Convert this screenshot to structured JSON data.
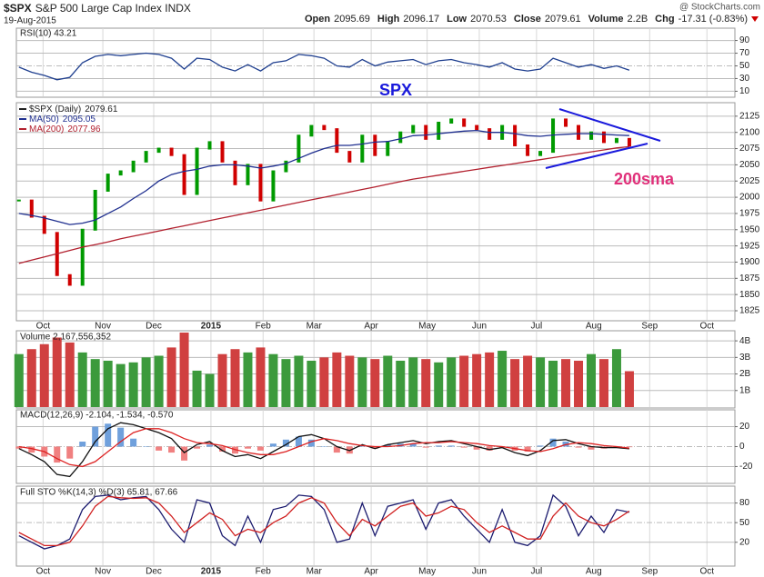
{
  "header": {
    "symbol": "$SPX",
    "name": "S&P 500 Large Cap Index INDX",
    "date": "19-Aug-2015",
    "logo": "@ StockCharts.com",
    "quote": [
      {
        "label": "Open",
        "value": 2095.69
      },
      {
        "label": "High",
        "value": 2096.17
      },
      {
        "label": "Low",
        "value": 2070.53
      },
      {
        "label": "Close",
        "value": 2079.61
      },
      {
        "label": "Volume",
        "value": "2.2B"
      },
      {
        "label": "Chg",
        "value": "-17.31 (-0.83%)"
      }
    ]
  },
  "chart_data": [
    {
      "type": "line",
      "label": "RSI(10) 43.21",
      "xlim": [
        -0.2,
        56.3
      ],
      "ylim": [
        2,
        108
      ],
      "yticks": [
        10,
        30,
        50,
        70,
        90
      ],
      "grid": true,
      "series": [
        {
          "name": "RSI(10)",
          "color": "#1f3f8f",
          "style": "line",
          "values": [
            48,
            40,
            35,
            28,
            32,
            55,
            65,
            68,
            66,
            68,
            70,
            68,
            62,
            45,
            62,
            60,
            48,
            42,
            52,
            42,
            55,
            58,
            68,
            66,
            62,
            50,
            48,
            60,
            50,
            56,
            58,
            60,
            52,
            58,
            60,
            55,
            52,
            48,
            55,
            45,
            42,
            45,
            62,
            55,
            48,
            52,
            46,
            50,
            43.21
          ]
        }
      ]
    },
    {
      "type": "line",
      "xlim": [
        -0.2,
        56.3
      ],
      "ylim": [
        1811,
        2143
      ],
      "grid": true,
      "annotations": [
        "SPX",
        "200sma"
      ],
      "yticks": [
        1825,
        1850,
        1875,
        1900,
        1925,
        1950,
        1975,
        2000,
        2025,
        2050,
        2075,
        2100,
        2125
      ],
      "xticks": [
        {
          "value": 1.9,
          "label": "Oct"
        },
        {
          "value": 6.6,
          "label": "Nov"
        },
        {
          "value": 10.6,
          "label": "Dec"
        },
        {
          "value": 15.1,
          "label": "2015"
        },
        {
          "value": 19.2,
          "label": "Feb"
        },
        {
          "value": 23.2,
          "label": "Mar"
        },
        {
          "value": 27.7,
          "label": "Apr"
        },
        {
          "value": 32.1,
          "label": "May"
        },
        {
          "value": 36.2,
          "label": "Jun"
        },
        {
          "value": 40.7,
          "label": "Jul"
        },
        {
          "value": 45.2,
          "label": "Aug"
        },
        {
          "value": 49.6,
          "label": "Sep"
        },
        {
          "value": 54.1,
          "label": "Oct"
        }
      ],
      "series": [
        {
          "name": "$SPX (Daily)",
          "style": "candle",
          "color": "#222222",
          "up_color": "#009a00",
          "down_color": "#d00000",
          "values": [
            1995,
            1970,
            1945,
            1880,
            1865,
            1950,
            2010,
            2035,
            2040,
            2055,
            2070,
            2075,
            2065,
            2005,
            2075,
            2085,
            2055,
            2020,
            2050,
            1995,
            2040,
            2055,
            2095,
            2110,
            2105,
            2070,
            2055,
            2095,
            2065,
            2085,
            2100,
            2110,
            2090,
            2115,
            2120,
            2110,
            2105,
            2090,
            2110,
            2080,
            2065,
            2070,
            2120,
            2110,
            2090,
            2100,
            2085,
            2090,
            2079.61
          ]
        },
        {
          "name": "MA(50)",
          "style": "line",
          "color": "#1f2f8f",
          "values": [
            1975,
            1972,
            1968,
            1963,
            1958,
            1960,
            1965,
            1975,
            1985,
            1998,
            2010,
            2025,
            2035,
            2040,
            2043,
            2048,
            2050,
            2050,
            2048,
            2045,
            2048,
            2052,
            2060,
            2068,
            2075,
            2080,
            2080,
            2082,
            2085,
            2086,
            2090,
            2095,
            2096,
            2098,
            2100,
            2102,
            2103,
            2100,
            2100,
            2098,
            2095,
            2094,
            2096,
            2097,
            2098,
            2098,
            2097,
            2096,
            2095.05
          ]
        },
        {
          "name": "MA(200)",
          "style": "line",
          "color": "#b2202e",
          "values": [
            1898,
            1903,
            1908,
            1913,
            1918,
            1923,
            1927,
            1931,
            1936,
            1940,
            1944,
            1948,
            1952,
            1956,
            1960,
            1964,
            1968,
            1972,
            1976,
            1980,
            1984,
            1988,
            1992,
            1996,
            2000,
            2004,
            2008,
            2012,
            2016,
            2020,
            2024,
            2028,
            2031,
            2034,
            2037,
            2040,
            2043,
            2046,
            2049,
            2052,
            2055,
            2058,
            2061,
            2064,
            2067,
            2070,
            2073,
            2076,
            2077.96
          ]
        }
      ]
    },
    {
      "type": "bar",
      "label": "Volume 2,167,556,352",
      "xlim": [
        -0.2,
        56.3
      ],
      "ylim": [
        0,
        4500000000
      ],
      "grid": true,
      "yticks": [
        {
          "value": 1000000000,
          "label": "1B"
        },
        {
          "value": 2000000000,
          "label": "2B"
        },
        {
          "value": 3000000000,
          "label": "3B"
        },
        {
          "value": 4000000000,
          "label": "4B"
        }
      ],
      "series": [
        {
          "name": "Volume",
          "style": "bar",
          "up_color": "#3c9a3c",
          "down_color": "#d04040",
          "values": [
            3200000000,
            3500000000,
            3800000000,
            4200000000,
            3900000000,
            3300000000,
            2900000000,
            2800000000,
            2600000000,
            2700000000,
            3000000000,
            3100000000,
            3600000000,
            4500000000,
            2200000000,
            2000000000,
            3200000000,
            3500000000,
            3300000000,
            3600000000,
            3200000000,
            2900000000,
            3100000000,
            2800000000,
            3000000000,
            3300000000,
            3100000000,
            3000000000,
            2900000000,
            3100000000,
            2800000000,
            3000000000,
            2900000000,
            2700000000,
            3000000000,
            3100000000,
            3200000000,
            3300000000,
            3400000000,
            2900000000,
            3100000000,
            3000000000,
            2800000000,
            2900000000,
            2800000000,
            3200000000,
            2900000000,
            3500000000,
            2167556352
          ]
        }
      ]
    },
    {
      "type": "line",
      "label": "MACD(12,26,9) -2.104, -1.534, -0.570",
      "xlim": [
        -0.2,
        56.3
      ],
      "ylim": [
        -36,
        36
      ],
      "yticks": [
        -20,
        0,
        20
      ],
      "grid": true,
      "series": [
        {
          "name": "Histogram",
          "style": "bar",
          "up_color": "#6fa0dc",
          "down_color": "#f08080",
          "values": [
            -2,
            -6,
            -10,
            -16,
            -12,
            5,
            20,
            23,
            19,
            8,
            0,
            -4,
            -6,
            -14,
            -2,
            2,
            -5,
            -7,
            -2,
            -4,
            3,
            7,
            10,
            7,
            0,
            -6,
            -7,
            1,
            -2,
            2,
            3,
            3,
            -1,
            1,
            1,
            -1,
            -3,
            -4,
            -1,
            -4,
            -5,
            1,
            8,
            5,
            -1,
            -3,
            -2,
            -1,
            -0.57
          ]
        },
        {
          "name": "MACD",
          "style": "line",
          "color": "#111111",
          "values": [
            -2,
            -8,
            -15,
            -28,
            -30,
            -15,
            5,
            18,
            24,
            22,
            18,
            14,
            8,
            -6,
            2,
            5,
            -4,
            -10,
            -8,
            -12,
            -5,
            2,
            10,
            12,
            8,
            0,
            -4,
            2,
            -2,
            2,
            4,
            6,
            3,
            5,
            6,
            3,
            0,
            -3,
            -1,
            -6,
            -9,
            -4,
            6,
            7,
            3,
            0,
            -1,
            -1,
            -2.104
          ]
        },
        {
          "name": "Signal",
          "style": "line",
          "color": "#dd2222",
          "values": [
            0,
            -2,
            -5,
            -12,
            -18,
            -20,
            -15,
            -5,
            5,
            14,
            18,
            18,
            14,
            8,
            4,
            3,
            1,
            -3,
            -6,
            -8,
            -8,
            -5,
            0,
            5,
            8,
            6,
            3,
            1,
            0,
            0,
            1,
            3,
            4,
            4,
            5,
            4,
            3,
            1,
            0,
            -2,
            -4,
            -5,
            -2,
            2,
            4,
            3,
            1,
            0,
            -1.534
          ]
        }
      ]
    },
    {
      "type": "line",
      "label": "Full STO %K(14,3) %D(3) 65.81, 67.66",
      "xlim": [
        -0.2,
        56.3
      ],
      "ylim": [
        -15,
        103
      ],
      "yticks": [
        20,
        50,
        80
      ],
      "grid": true,
      "xticks": [
        {
          "value": 1.9,
          "label": "Oct"
        },
        {
          "value": 6.6,
          "label": "Nov"
        },
        {
          "value": 10.6,
          "label": "Dec"
        },
        {
          "value": 15.1,
          "label": "2015"
        },
        {
          "value": 19.2,
          "label": "Feb"
        },
        {
          "value": 23.2,
          "label": "Mar"
        },
        {
          "value": 27.7,
          "label": "Apr"
        },
        {
          "value": 32.1,
          "label": "May"
        },
        {
          "value": 36.2,
          "label": "Jun"
        },
        {
          "value": 40.7,
          "label": "Jul"
        },
        {
          "value": 45.2,
          "label": "Aug"
        },
        {
          "value": 49.6,
          "label": "Sep"
        },
        {
          "value": 54.1,
          "label": "Oct"
        }
      ],
      "series": [
        {
          "name": "%K",
          "style": "line",
          "color": "#1a1a6e",
          "values": [
            30,
            20,
            10,
            15,
            25,
            70,
            90,
            92,
            85,
            88,
            90,
            70,
            40,
            20,
            85,
            80,
            30,
            15,
            60,
            20,
            70,
            75,
            92,
            90,
            70,
            20,
            25,
            80,
            30,
            75,
            80,
            85,
            40,
            80,
            85,
            60,
            40,
            20,
            70,
            20,
            15,
            30,
            92,
            75,
            30,
            60,
            35,
            70,
            65.81
          ]
        },
        {
          "name": "%D",
          "style": "line",
          "color": "#d02020",
          "values": [
            35,
            25,
            15,
            15,
            20,
            45,
            75,
            90,
            88,
            87,
            88,
            80,
            60,
            35,
            50,
            65,
            55,
            30,
            40,
            35,
            50,
            60,
            80,
            88,
            80,
            50,
            30,
            55,
            45,
            60,
            75,
            80,
            60,
            65,
            75,
            70,
            50,
            35,
            45,
            35,
            25,
            25,
            60,
            80,
            60,
            50,
            45,
            55,
            67.66
          ]
        }
      ]
    }
  ]
}
